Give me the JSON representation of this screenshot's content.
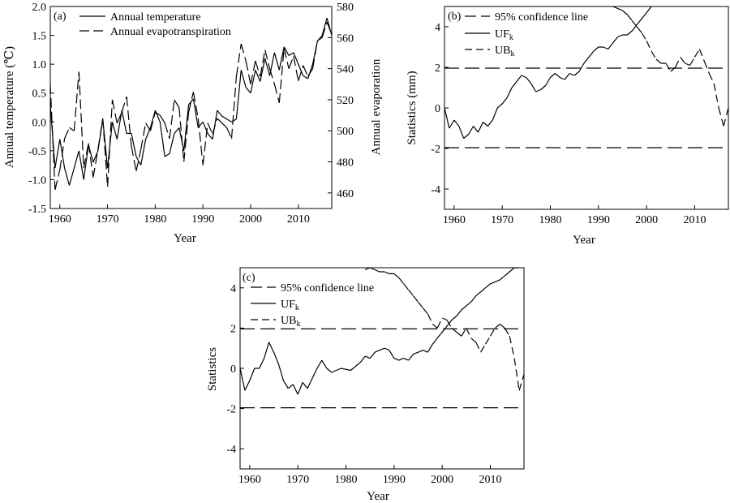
{
  "chart_data": [
    {
      "panel": "(a)",
      "type": "line",
      "xlabel": "Year",
      "ylabel_left": "Annual temperature (℃)",
      "ylabel_right": "Annual evaporation",
      "xlim": [
        1958,
        2017
      ],
      "ylim_left": [
        -1.5,
        2.0
      ],
      "ylim_right": [
        450,
        580
      ],
      "xticks": [
        1960,
        1970,
        1980,
        1990,
        2000,
        2010
      ],
      "yticks_left": [
        "-1.5",
        "-1.0",
        "-0.5",
        "0.0",
        "0.5",
        "1.0",
        "1.5",
        "2.0"
      ],
      "yticks_right": [
        "460",
        "480",
        "500",
        "520",
        "540",
        "560",
        "580"
      ],
      "legend_position": "top-left",
      "series": [
        {
          "name": "Annual temperature",
          "axis": "left",
          "style": "solid",
          "x": [
            1958,
            1959,
            1960,
            1961,
            1962,
            1963,
            1964,
            1965,
            1966,
            1967,
            1968,
            1969,
            1970,
            1971,
            1972,
            1973,
            1974,
            1975,
            1976,
            1977,
            1978,
            1979,
            1980,
            1981,
            1982,
            1983,
            1984,
            1985,
            1986,
            1987,
            1988,
            1989,
            1990,
            1991,
            1992,
            1993,
            1994,
            1995,
            1996,
            1997,
            1998,
            1999,
            2000,
            2001,
            2002,
            2003,
            2004,
            2005,
            2006,
            2007,
            2008,
            2009,
            2010,
            2011,
            2012,
            2013,
            2014,
            2015,
            2016,
            2017
          ],
          "values": [
            0.3,
            -0.8,
            -0.3,
            -0.8,
            -1.1,
            -0.8,
            -0.5,
            -1.0,
            -0.4,
            -0.7,
            -0.5,
            0.05,
            -0.8,
            0.0,
            -0.3,
            0.2,
            -0.2,
            -0.2,
            -0.6,
            -0.75,
            -0.3,
            -0.1,
            0.2,
            0.0,
            -0.6,
            -0.55,
            -0.2,
            -0.1,
            -0.5,
            0.3,
            0.4,
            -0.1,
            0.0,
            -0.2,
            -0.3,
            0.2,
            0.1,
            0.05,
            0.0,
            0.05,
            0.9,
            0.6,
            0.5,
            0.9,
            0.7,
            1.1,
            0.8,
            1.2,
            0.9,
            1.3,
            1.15,
            1.2,
            1.0,
            0.8,
            0.75,
            1.0,
            1.4,
            1.5,
            1.8,
            1.5
          ]
        },
        {
          "name": "Annual evapotranspiration",
          "axis": "right",
          "style": "dashed",
          "x": [
            1958,
            1959,
            1960,
            1961,
            1962,
            1963,
            1964,
            1965,
            1966,
            1967,
            1968,
            1969,
            1970,
            1971,
            1972,
            1973,
            1974,
            1975,
            1976,
            1977,
            1978,
            1979,
            1980,
            1981,
            1982,
            1983,
            1984,
            1985,
            1986,
            1987,
            1988,
            1989,
            1990,
            1991,
            1992,
            1993,
            1994,
            1995,
            1996,
            1997,
            1998,
            1999,
            2000,
            2001,
            2002,
            2003,
            2004,
            2005,
            2006,
            2007,
            2008,
            2009,
            2010,
            2011,
            2012,
            2013,
            2014,
            2015,
            2016,
            2017
          ],
          "values": [
            530,
            462,
            475,
            495,
            502,
            500,
            538,
            476,
            492,
            470,
            488,
            508,
            464,
            520,
            505,
            512,
            522,
            490,
            474,
            488,
            505,
            500,
            512,
            510,
            505,
            495,
            520,
            515,
            480,
            512,
            525,
            508,
            478,
            505,
            498,
            508,
            505,
            502,
            495,
            535,
            556,
            545,
            530,
            545,
            535,
            552,
            540,
            530,
            518,
            553,
            540,
            548,
            532,
            542,
            535,
            540,
            558,
            560,
            570,
            562
          ]
        }
      ]
    },
    {
      "panel": "(b)",
      "type": "line",
      "xlabel": "Year",
      "ylabel": "Statistics (mm)",
      "xlim": [
        1958,
        2017
      ],
      "ylim": [
        -5,
        5
      ],
      "xticks": [
        1960,
        1970,
        1980,
        1990,
        2000,
        2010
      ],
      "yticks": [
        "-4",
        "-2",
        "0",
        "2",
        "4"
      ],
      "legend_position": "top-left",
      "confidence_lines": [
        1.96,
        -1.96
      ],
      "series": [
        {
          "name": "95% confidence line",
          "style": "long-dash"
        },
        {
          "name": "UF",
          "subscript": "k",
          "style": "solid",
          "x": [
            1958,
            1959,
            1960,
            1961,
            1962,
            1963,
            1964,
            1965,
            1966,
            1967,
            1968,
            1969,
            1970,
            1971,
            1972,
            1973,
            1974,
            1975,
            1976,
            1977,
            1978,
            1979,
            1980,
            1981,
            1982,
            1983,
            1984,
            1985,
            1986,
            1987,
            1988,
            1989,
            1990,
            1991,
            1992,
            1993,
            1994,
            1995,
            1996,
            1997,
            1998,
            1999,
            2000,
            2001
          ],
          "values": [
            0.0,
            -1.0,
            -0.6,
            -0.9,
            -1.5,
            -1.3,
            -0.9,
            -1.2,
            -0.7,
            -0.9,
            -0.6,
            0.0,
            0.2,
            0.5,
            1.0,
            1.3,
            1.6,
            1.5,
            1.2,
            0.8,
            0.9,
            1.1,
            1.5,
            1.7,
            1.5,
            1.4,
            1.7,
            1.6,
            1.8,
            2.2,
            2.5,
            2.8,
            3.0,
            3.0,
            2.9,
            3.2,
            3.5,
            3.6,
            3.6,
            3.8,
            4.1,
            4.4,
            4.7,
            5.0
          ]
        },
        {
          "name": "UB",
          "subscript": "k",
          "style": "dash",
          "x": [
            1993,
            1994,
            1995,
            1996,
            1997,
            1998,
            1999,
            2000,
            2001,
            2002,
            2003,
            2004,
            2005,
            2006,
            2007,
            2008,
            2009,
            2010,
            2011,
            2012,
            2013,
            2014,
            2015,
            2016,
            2017
          ],
          "values": [
            5.0,
            4.9,
            4.8,
            4.6,
            4.3,
            4.0,
            3.7,
            3.3,
            2.8,
            2.4,
            2.2,
            2.2,
            1.8,
            2.0,
            2.5,
            2.2,
            2.1,
            2.5,
            2.9,
            2.3,
            1.7,
            1.2,
            0.0,
            -0.9,
            0.0
          ]
        }
      ]
    },
    {
      "panel": "(c)",
      "type": "line",
      "xlabel": "Year",
      "ylabel": "Statistics",
      "xlim": [
        1958,
        2017
      ],
      "ylim": [
        -5,
        5
      ],
      "xticks": [
        1960,
        1970,
        1980,
        1990,
        2000,
        2010
      ],
      "yticks": [
        "-4",
        "-2",
        "0",
        "2",
        "4"
      ],
      "legend_position": "top-left",
      "confidence_lines": [
        1.96,
        -1.96
      ],
      "series": [
        {
          "name": "95% confidence line",
          "style": "long-dash"
        },
        {
          "name": "UF",
          "subscript": "k",
          "style": "solid",
          "x": [
            1958,
            1959,
            1960,
            1961,
            1962,
            1963,
            1964,
            1965,
            1966,
            1967,
            1968,
            1969,
            1970,
            1971,
            1972,
            1973,
            1974,
            1975,
            1976,
            1977,
            1978,
            1979,
            1980,
            1981,
            1982,
            1983,
            1984,
            1985,
            1986,
            1987,
            1988,
            1989,
            1990,
            1991,
            1992,
            1993,
            1994,
            1995,
            1996,
            1997,
            1998,
            1999,
            2000,
            2001,
            2002,
            2003,
            2004,
            2005,
            2006,
            2007,
            2008,
            2009,
            2010,
            2011,
            2012,
            2013,
            2014,
            2015,
            2016
          ],
          "values": [
            0.0,
            -1.1,
            -0.6,
            0.0,
            0.0,
            0.5,
            1.3,
            0.8,
            0.2,
            -0.6,
            -1.0,
            -0.8,
            -1.3,
            -0.7,
            -1.0,
            -0.5,
            0.0,
            0.4,
            0.0,
            -0.2,
            -0.1,
            0.0,
            -0.05,
            -0.1,
            0.1,
            0.3,
            0.6,
            0.5,
            0.8,
            0.9,
            1.0,
            0.9,
            0.5,
            0.4,
            0.5,
            0.4,
            0.7,
            0.8,
            0.9,
            0.8,
            1.2,
            1.5,
            1.8,
            2.1,
            2.4,
            2.6,
            2.9,
            3.1,
            3.3,
            3.6,
            3.8,
            4.0,
            4.2,
            4.3,
            4.4,
            4.6,
            4.8,
            5.0,
            5.0
          ]
        },
        {
          "name": "UB",
          "subscript": "k",
          "style": "dash",
          "x": [
            1984,
            1985,
            1986,
            1987,
            1988,
            1989,
            1990,
            1991,
            1992,
            1993,
            1994,
            1995,
            1996,
            1997,
            1998,
            1999,
            2000,
            2001,
            2002,
            2003,
            2004,
            2005,
            2006,
            2007,
            2008,
            2009,
            2010,
            2011,
            2012,
            2013,
            2014,
            2015,
            2016,
            2017
          ],
          "values": [
            4.9,
            5.0,
            4.9,
            4.8,
            4.8,
            4.7,
            4.7,
            4.5,
            4.2,
            3.9,
            3.6,
            3.3,
            3.0,
            2.7,
            2.2,
            2.0,
            2.5,
            2.4,
            2.0,
            1.8,
            1.6,
            2.0,
            1.5,
            1.3,
            0.8,
            1.2,
            1.6,
            2.0,
            2.2,
            2.0,
            1.6,
            0.5,
            -1.1,
            -0.3
          ]
        }
      ]
    }
  ]
}
